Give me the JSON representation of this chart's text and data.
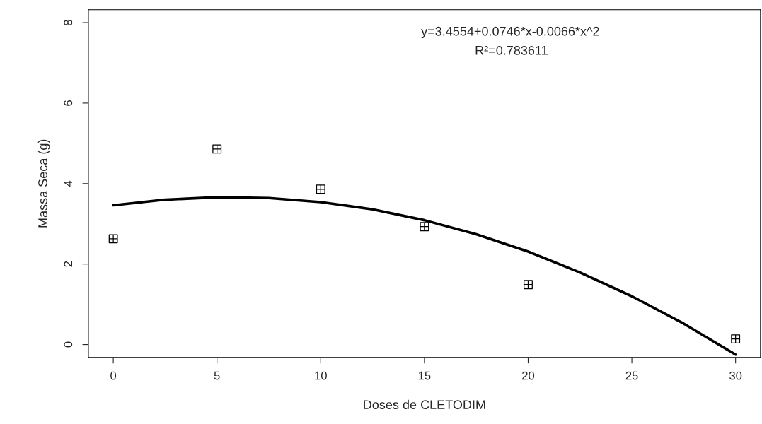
{
  "chart_data": {
    "type": "scatter",
    "xlabel": "Doses de CLETODIM",
    "ylabel": "Massa Seca (g)",
    "annotations": [
      "y=3.4554+0.0746*x-0.0066*x^2",
      "R²=0.783611"
    ],
    "series": [
      {
        "color": "#000000",
        "marker": "cross",
        "x": [
          0,
          5,
          10,
          15,
          20,
          30
        ],
        "values": [
          2.63,
          4.86,
          3.86,
          2.93,
          1.49,
          0.14
        ]
      },
      {
        "type": "line",
        "color": "#000000",
        "marker": "none",
        "line_style": "solid",
        "x": [
          0,
          2.5,
          5,
          7.5,
          10,
          12.5,
          15,
          17.5,
          20,
          22.5,
          25,
          27.5,
          30
        ],
        "values": [
          3.46,
          3.6,
          3.66,
          3.64,
          3.54,
          3.36,
          3.09,
          2.74,
          2.31,
          1.79,
          1.2,
          0.52,
          -0.25
        ]
      }
    ],
    "xlim": [
      -1.2,
      31.2
    ],
    "ylim": [
      -0.32,
      8.32
    ],
    "xticks": [
      0,
      5,
      10,
      15,
      20,
      25,
      30
    ],
    "yticks": [
      0,
      2,
      4,
      6,
      8
    ],
    "grid": false,
    "legend": false
  }
}
